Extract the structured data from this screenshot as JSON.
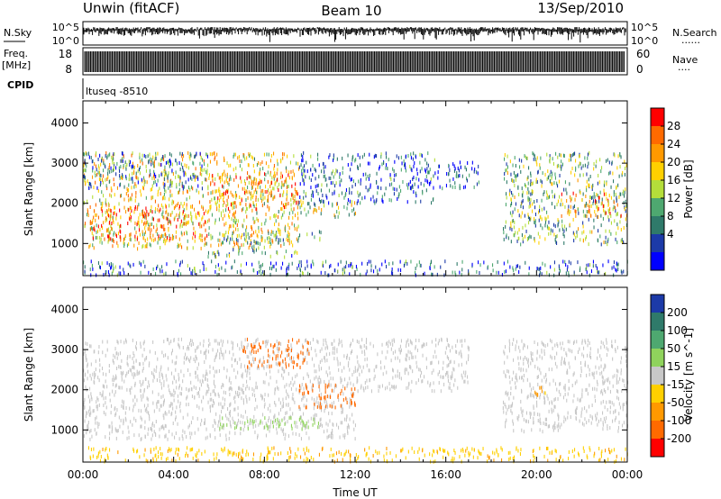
{
  "header": {
    "station": "Unwin (fitACF)",
    "beam": "Beam 10",
    "date": "13/Sep/2010"
  },
  "noise_panel": {
    "left_label": "N.Sky",
    "right_label": "N.Search",
    "right_dots": "......",
    "ticks": [
      "10^5",
      "10^0"
    ],
    "right_ticks": [
      "10^5",
      "10^0"
    ]
  },
  "freq_panel": {
    "left_label_1": "Freq.",
    "left_label_2": "[MHz]",
    "left_ticks": [
      "18",
      "8"
    ],
    "right_label": "Nave",
    "right_dots": "....",
    "right_ticks": [
      "60",
      "0"
    ]
  },
  "cpid": {
    "label": "CPID",
    "program": "ltuseq -8510"
  },
  "chart_data": [
    {
      "type": "heatmap",
      "name": "power",
      "ylabel": "Slant Range [km]",
      "yticks": [
        "4000",
        "3000",
        "2000",
        "1000"
      ],
      "ylim": [
        200,
        4550
      ],
      "xlim": [
        0,
        24
      ],
      "colorbar_label": "Power [dB]",
      "colorbar_ticks": [
        "28",
        "24",
        "20",
        "16",
        "12",
        "8",
        "4"
      ],
      "colorbar_colors": [
        "#ff0000",
        "#ff6a00",
        "#ff9900",
        "#ffd000",
        "#b4de3a",
        "#4ea870",
        "#2f7a6a",
        "#1c3aa8",
        "#0000ff"
      ],
      "scatter_regions": [
        {
          "t": [
            0,
            9.5
          ],
          "r": [
            900,
            3300
          ],
          "level": 0.6
        },
        {
          "t": [
            0.3,
            5.5
          ],
          "r": [
            1100,
            2000
          ],
          "level": 0.78
        },
        {
          "t": [
            5.5,
            9.5
          ],
          "r": [
            1900,
            2800
          ],
          "level": 0.72
        },
        {
          "t": [
            0,
            5.5
          ],
          "r": [
            2400,
            3300
          ],
          "level": 0.28
        },
        {
          "t": [
            9.5,
            15.5
          ],
          "r": [
            2000,
            3300
          ],
          "level": 0.2
        },
        {
          "t": [
            9.5,
            12
          ],
          "r": [
            1700,
            2100
          ],
          "level": 0.5
        },
        {
          "t": [
            5.5,
            9.5
          ],
          "r": [
            700,
            900
          ],
          "level": 0.35
        },
        {
          "t": [
            6,
            10.5
          ],
          "r": [
            1050,
            1350
          ],
          "level": 0.4
        },
        {
          "t": [
            15.5,
            17.5
          ],
          "r": [
            2400,
            3100
          ],
          "level": 0.15
        },
        {
          "t": [
            18.5,
            24
          ],
          "r": [
            1000,
            3300
          ],
          "level": 0.4
        },
        {
          "t": [
            21,
            24
          ],
          "r": [
            1700,
            2300
          ],
          "level": 0.7
        },
        {
          "t": [
            0,
            24
          ],
          "r": [
            250,
            600
          ],
          "level": 0.22
        }
      ]
    },
    {
      "type": "heatmap",
      "name": "velocity",
      "ylabel": "Slant Range [km]",
      "yticks": [
        "4000",
        "3000",
        "2000",
        "1000"
      ],
      "ylim": [
        200,
        4550
      ],
      "xlim": [
        0,
        24
      ],
      "xlabel": "Time UT",
      "xticks": [
        "00:00",
        "04:00",
        "08:00",
        "12:00",
        "16:00",
        "20:00",
        "00:00"
      ],
      "colorbar_label": "Velocity [m s^-1]",
      "colorbar_ticks": [
        "200",
        "100",
        "50",
        "15",
        "-15",
        "-50",
        "-100",
        "-200"
      ],
      "colorbar_colors": [
        "#1c3aa8",
        "#2f7a6a",
        "#4ea870",
        "#8fd35c",
        "#c8c8c8",
        "#ffd000",
        "#ff9900",
        "#ff6a00",
        "#ff0000"
      ],
      "scatter_regions": [
        {
          "t": [
            0,
            12
          ],
          "r": [
            800,
            3300
          ],
          "value": 0
        },
        {
          "t": [
            9.5,
            12
          ],
          "r": [
            1600,
            2200
          ],
          "value": -180
        },
        {
          "t": [
            7,
            10
          ],
          "r": [
            2600,
            3300
          ],
          "value": -120
        },
        {
          "t": [
            6,
            10.5
          ],
          "r": [
            1050,
            1350
          ],
          "value": 30
        },
        {
          "t": [
            12,
            17
          ],
          "r": [
            2000,
            3300
          ],
          "value": 0
        },
        {
          "t": [
            18.5,
            24
          ],
          "r": [
            1000,
            3300
          ],
          "value": 0
        },
        {
          "t": [
            19.5,
            20.5
          ],
          "r": [
            1850,
            2100
          ],
          "value": -60
        },
        {
          "t": [
            0,
            24
          ],
          "r": [
            250,
            600
          ],
          "value": -40
        }
      ]
    }
  ]
}
